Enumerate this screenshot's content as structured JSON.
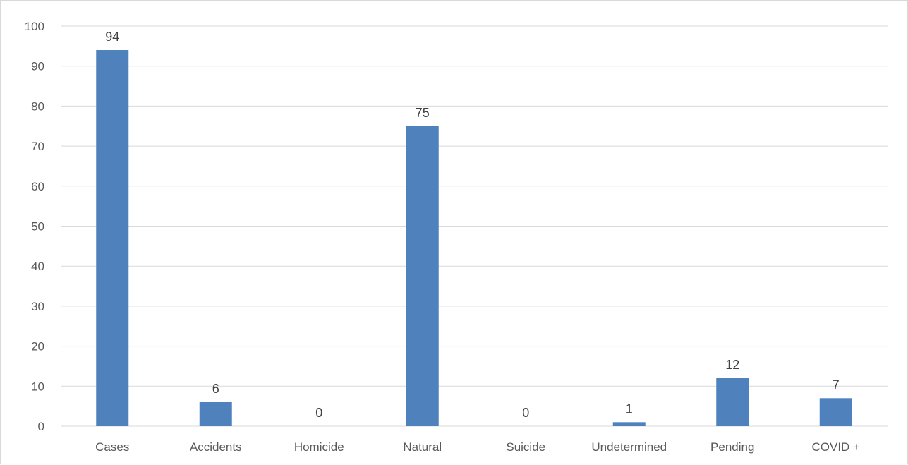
{
  "chart_data": {
    "type": "bar",
    "title": "",
    "xlabel": "",
    "ylabel": "",
    "categories": [
      "Cases",
      "Accidents",
      "Homicide",
      "Natural",
      "Suicide",
      "Undetermined",
      "Pending",
      "COVID +"
    ],
    "series": [
      {
        "values": [
          94,
          6,
          0,
          75,
          0,
          1,
          12,
          7
        ],
        "color": "#4f81bd"
      }
    ],
    "ylim": [
      0,
      100
    ],
    "yticks": [
      0,
      10,
      20,
      30,
      40,
      50,
      60,
      70,
      80,
      90,
      100
    ],
    "grid": true,
    "gridColor": "#d9d9d9",
    "data_labels": true,
    "legend": "none"
  }
}
